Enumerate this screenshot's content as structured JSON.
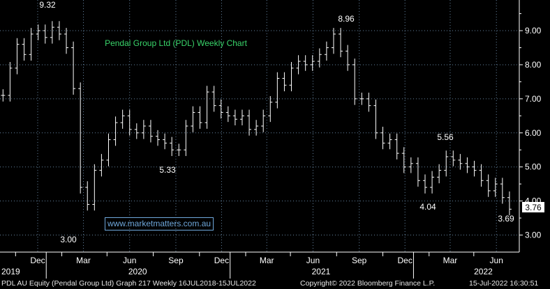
{
  "chart_data": {
    "type": "line",
    "subtype": "ohlc-weekly",
    "title": "Pendal Group Ltd (PDL) Weekly Chart",
    "ylim": [
      2.5,
      9.9
    ],
    "yticks": [
      3.0,
      4.0,
      5.0,
      6.0,
      7.0,
      8.0,
      9.0
    ],
    "ytick_labels": [
      "3.00",
      "4.00",
      "5.00",
      "6.00",
      "7.00",
      "8.00",
      "9.00"
    ],
    "x_month_labels": [
      "Dec",
      "Mar",
      "Jun",
      "Sep",
      "Dec",
      "Mar",
      "Jun",
      "Sep",
      "Dec",
      "Mar",
      "Jun"
    ],
    "x_year_labels": [
      "2019",
      "2020",
      "2021",
      "2022"
    ],
    "grid": true,
    "series": [
      {
        "x": [
          "2019-10-07",
          "2019-10-21",
          "2019-11-04",
          "2019-11-18",
          "2019-12-02",
          "2019-12-16",
          "2019-12-30",
          "2020-01-13",
          "2020-01-27",
          "2020-02-10",
          "2020-02-24",
          "2020-03-09",
          "2020-03-23",
          "2020-04-06",
          "2020-04-20",
          "2020-05-04",
          "2020-05-18",
          "2020-06-01",
          "2020-06-15",
          "2020-06-29",
          "2020-07-13",
          "2020-07-27",
          "2020-08-10",
          "2020-08-24",
          "2020-09-07",
          "2020-09-21",
          "2020-10-05",
          "2020-10-19",
          "2020-11-02",
          "2020-11-16",
          "2020-11-30",
          "2020-12-14",
          "2020-12-28",
          "2021-01-11",
          "2021-01-25",
          "2021-02-08",
          "2021-02-22",
          "2021-03-08",
          "2021-03-22",
          "2021-04-05",
          "2021-04-19",
          "2021-05-03",
          "2021-05-17",
          "2021-05-31",
          "2021-06-14",
          "2021-06-28",
          "2021-07-12",
          "2021-07-26",
          "2021-08-09",
          "2021-08-23",
          "2021-09-06",
          "2021-09-20",
          "2021-10-04",
          "2021-10-18",
          "2021-11-01",
          "2021-11-15",
          "2021-11-29",
          "2021-12-13",
          "2021-12-27",
          "2022-01-10",
          "2022-01-24",
          "2022-02-07",
          "2022-02-21",
          "2022-03-07",
          "2022-03-21",
          "2022-04-04",
          "2022-04-18",
          "2022-05-02",
          "2022-05-16",
          "2022-05-30",
          "2022-06-13",
          "2022-06-27",
          "2022-07-11"
        ],
        "values": [
          7.1,
          7.9,
          8.6,
          8.3,
          8.9,
          9.0,
          8.8,
          9.1,
          8.9,
          8.5,
          7.3,
          4.4,
          3.9,
          4.9,
          5.2,
          5.8,
          6.3,
          6.5,
          6.1,
          6.0,
          6.2,
          5.9,
          5.8,
          5.7,
          5.5,
          5.5,
          6.2,
          6.6,
          6.3,
          7.2,
          6.8,
          6.6,
          6.5,
          6.4,
          6.5,
          6.1,
          6.2,
          6.5,
          6.9,
          7.6,
          7.4,
          7.9,
          8.1,
          8.0,
          8.1,
          8.3,
          8.5,
          8.9,
          8.4,
          8.0,
          7.0,
          7.0,
          6.8,
          6.0,
          5.7,
          5.8,
          5.4,
          5.0,
          5.1,
          4.6,
          4.4,
          4.7,
          4.9,
          5.3,
          5.2,
          5.1,
          5.0,
          4.9,
          4.6,
          4.3,
          4.5,
          4.1,
          3.76
        ]
      }
    ],
    "annotations": [
      "9.32",
      "3.00",
      "5.33",
      "8.96",
      "5.56",
      "4.04",
      "3.69"
    ],
    "last_price_label": "3.76"
  },
  "watermark": "www.marketmatters.com.au",
  "footer": {
    "left": "PDL AU Equity (Pendal Group Ltd) Graph 217  Weekly 16JUL2018-15JUL2022",
    "center": "Copyright© 2022 Bloomberg Finance L.P.",
    "right": "15-Jul-2022 16:30:51"
  },
  "colors": {
    "background": "#000000",
    "bars": "#ffffff",
    "grid": "#7fa5c9",
    "title": "#39d46a",
    "last_price_box": "#ffffff"
  }
}
